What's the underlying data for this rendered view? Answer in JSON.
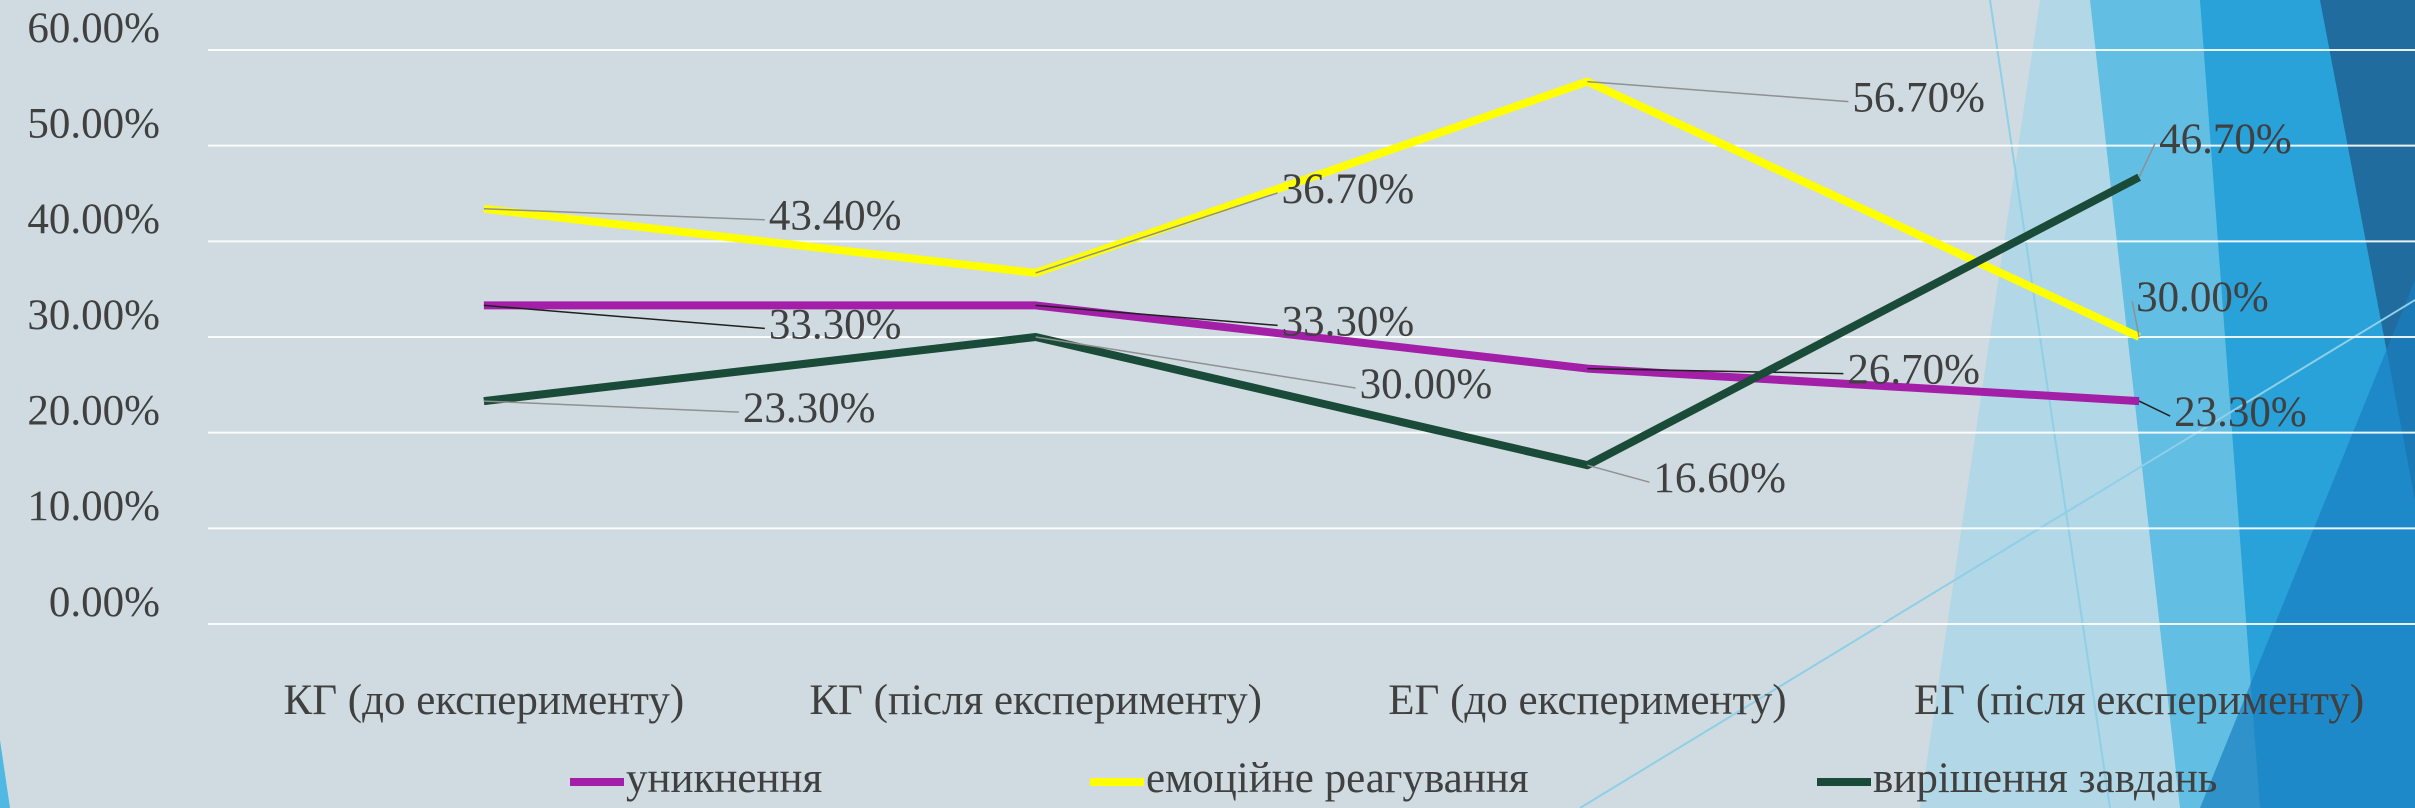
{
  "chart_data": {
    "type": "line",
    "categories": [
      "КГ (до експерименту)",
      "КГ (після експерименту)",
      "ЕГ (до експерименту)",
      "ЕГ (після експерименту)"
    ],
    "series": [
      {
        "name": "уникнення",
        "color": "#a31fa8",
        "values": [
          33.3,
          33.3,
          26.7,
          23.3
        ],
        "value_labels": [
          "33.30%",
          "33.30%",
          "26.70%",
          "23.30%"
        ]
      },
      {
        "name": "емоційне реагування",
        "color": "#ffff00",
        "values": [
          43.4,
          36.7,
          56.7,
          30.0
        ],
        "value_labels": [
          "43.40%",
          "36.70%",
          "56.70%",
          "30.00%"
        ]
      },
      {
        "name": "вирішення завдань",
        "color": "#1a4a38",
        "values": [
          23.3,
          30.0,
          16.6,
          46.7
        ],
        "value_labels": [
          "23.30%",
          "30.00%",
          "16.60%",
          "46.70%"
        ]
      }
    ],
    "ylim": [
      0,
      60
    ],
    "yticks": [
      {
        "value": 0,
        "label": "0.00%"
      },
      {
        "value": 10,
        "label": "10.00%"
      },
      {
        "value": 20,
        "label": "20.00%"
      },
      {
        "value": 30,
        "label": "30.00%"
      },
      {
        "value": 40,
        "label": "40.00%"
      },
      {
        "value": 50,
        "label": "50.00%"
      },
      {
        "value": 60,
        "label": "60.00%"
      }
    ],
    "grid": true,
    "legend": "bottom"
  }
}
